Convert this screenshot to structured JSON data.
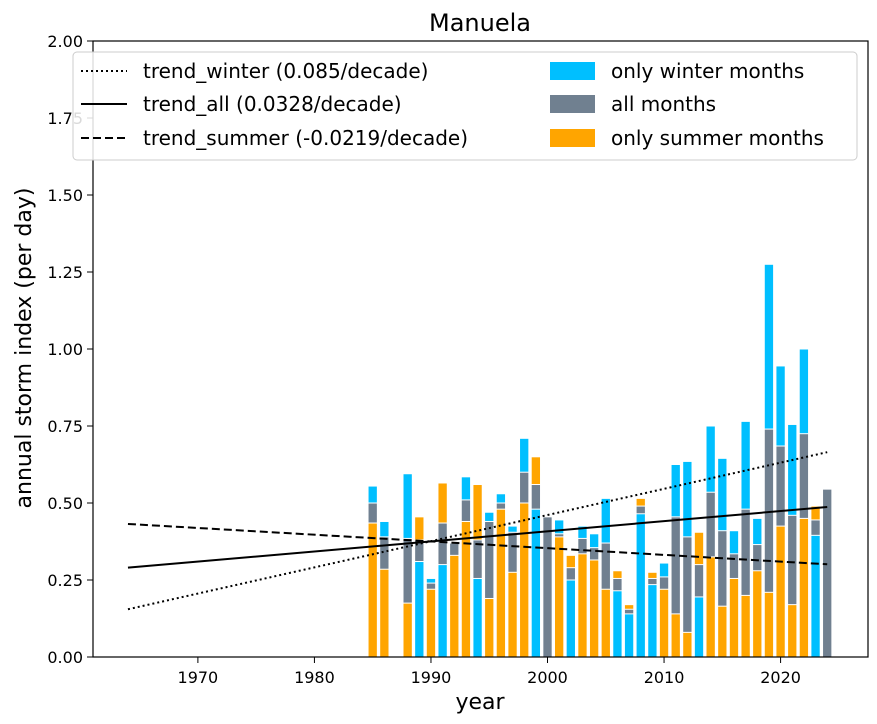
{
  "chart_data": {
    "type": "bar",
    "title": "Manuela",
    "xlabel": "year",
    "ylabel": "annual storm index (per day)",
    "xlim": [
      1961,
      2027.5
    ],
    "ylim": [
      0,
      2.0
    ],
    "xticks": [
      1970,
      1980,
      1990,
      2000,
      2010,
      2020
    ],
    "yticks": [
      "0.00",
      "0.25",
      "0.50",
      "0.75",
      "1.00",
      "1.25",
      "1.50",
      "1.75",
      "2.00"
    ],
    "legend_position": "top",
    "colors": {
      "winter": "#00bfff",
      "all": "#708090",
      "summer": "#ffa500"
    },
    "series": [
      {
        "name": "only winter months",
        "key": "winter",
        "x": [
          1985,
          1986,
          1987,
          1988,
          1989,
          1990,
          1991,
          1992,
          1993,
          1994,
          1995,
          1996,
          1997,
          1998,
          1999,
          2000,
          2001,
          2002,
          2003,
          2004,
          2005,
          2006,
          2007,
          2008,
          2009,
          2010,
          2011,
          2012,
          2013,
          2014,
          2015,
          2016,
          2017,
          2018,
          2019,
          2020,
          2021,
          2022,
          2023,
          2024
        ],
        "values": [
          0.555,
          0.44,
          0,
          0.595,
          0.31,
          0.255,
          0.3,
          0.37,
          0.585,
          0.255,
          0.47,
          0.53,
          0.425,
          0.71,
          0.48,
          0.455,
          0.445,
          0.25,
          0.425,
          0.4,
          0.515,
          0.215,
          0.14,
          0.465,
          0.235,
          0.305,
          0.625,
          0.635,
          0.195,
          0.75,
          0.645,
          0.41,
          0.765,
          0.45,
          1.275,
          0.945,
          0.755,
          1.0,
          0.395,
          0.545
        ]
      },
      {
        "name": "all months",
        "key": "all",
        "x": [
          1985,
          1986,
          1987,
          1988,
          1989,
          1990,
          1991,
          1992,
          1993,
          1994,
          1995,
          1996,
          1997,
          1998,
          1999,
          2000,
          2001,
          2002,
          2003,
          2004,
          2005,
          2006,
          2007,
          2008,
          2009,
          2010,
          2011,
          2012,
          2013,
          2014,
          2015,
          2016,
          2017,
          2018,
          2019,
          2020,
          2021,
          2022,
          2023,
          2024
        ],
        "values": [
          0.5,
          0.39,
          0,
          0.385,
          0.38,
          0.24,
          0.435,
          0.37,
          0.51,
          0.38,
          0.44,
          0.5,
          0.405,
          0.6,
          0.56,
          0.455,
          0.4,
          0.29,
          0.385,
          0.355,
          0.37,
          0.255,
          0.155,
          0.49,
          0.255,
          0.26,
          0.455,
          0.39,
          0.3,
          0.535,
          0.41,
          0.335,
          0.48,
          0.365,
          0.74,
          0.685,
          0.46,
          0.725,
          0.445,
          0.545
        ]
      },
      {
        "name": "only summer months",
        "key": "summer",
        "x": [
          1985,
          1986,
          1987,
          1988,
          1989,
          1990,
          1991,
          1992,
          1993,
          1994,
          1995,
          1996,
          1997,
          1998,
          1999,
          2000,
          2001,
          2002,
          2003,
          2004,
          2005,
          2006,
          2007,
          2008,
          2009,
          2010,
          2011,
          2012,
          2013,
          2014,
          2015,
          2016,
          2017,
          2018,
          2019,
          2020,
          2021,
          2022,
          2023,
          2024
        ],
        "values": [
          0.435,
          0.285,
          0,
          0.175,
          0.455,
          0.22,
          0.565,
          0.33,
          0.44,
          0.56,
          0.19,
          0.48,
          0.275,
          0.5,
          0.65,
          0,
          0.39,
          0.33,
          0.335,
          0.315,
          0.22,
          0.28,
          0.17,
          0.515,
          0.275,
          0.22,
          0.14,
          0.08,
          0.405,
          0.325,
          0.165,
          0.255,
          0.2,
          0.28,
          0.21,
          0.425,
          0.17,
          0.45,
          0.49,
          0
        ]
      }
    ],
    "trends": [
      {
        "name": "trend_winter (0.085/decade)",
        "key": "winter",
        "dash": "dotted",
        "x": [
          1964,
          2024
        ],
        "y": [
          0.155,
          0.665
        ]
      },
      {
        "name": "trend_all (0.0328/decade)",
        "key": "all",
        "dash": "solid",
        "x": [
          1964,
          2024
        ],
        "y": [
          0.29,
          0.487
        ]
      },
      {
        "name": "trend_summer (-0.0219/decade)",
        "key": "summer",
        "dash": "dashed",
        "x": [
          1964,
          2024
        ],
        "y": [
          0.432,
          0.301
        ]
      }
    ]
  }
}
